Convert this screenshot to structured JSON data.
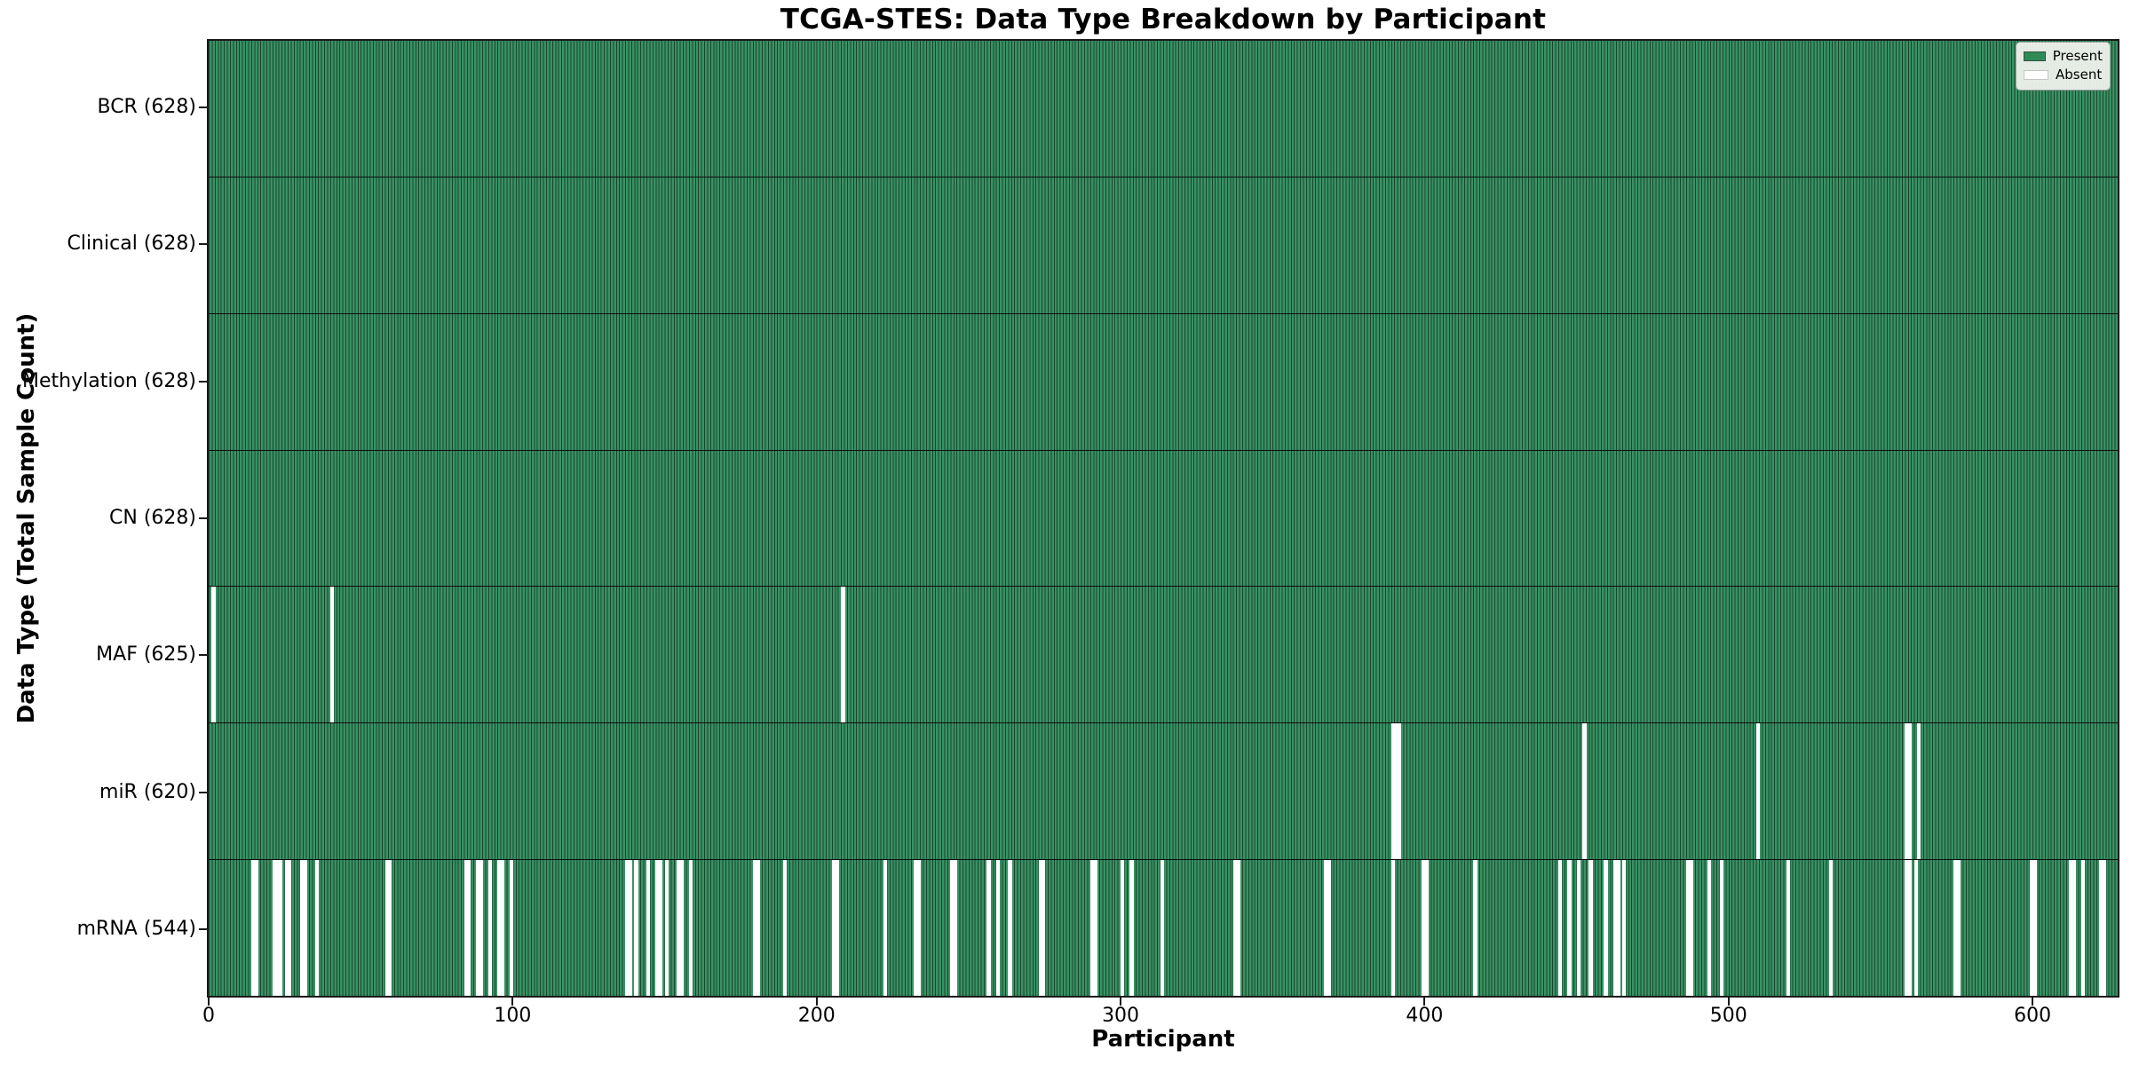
{
  "figure": {
    "title": "TCGA-STES: Data Type Breakdown by Participant",
    "xlabel": "Participant",
    "ylabel": "Data Type (Total Sample Count)"
  },
  "legend": {
    "present_label": "Present",
    "absent_label": "Absent"
  },
  "colors": {
    "present_fill": "#3a9164",
    "bar_edge": "#17472c",
    "absent_fill": "#ffffff",
    "row_divider": "#0d0d0d",
    "plot_border": "#1a1a1a",
    "legend_bg": "#eef2ec",
    "legend_border": "#9aa19a"
  },
  "chart_data": {
    "type": "heatmap",
    "title": "TCGA-STES: Data Type Breakdown by Participant",
    "xlabel": "Participant",
    "ylabel": "Data Type (Total Sample Count)",
    "n_participants": 628,
    "x_ticks": [
      0,
      100,
      200,
      300,
      400,
      500,
      600
    ],
    "xlim": [
      0,
      628
    ],
    "grid": false,
    "legend_position": "upper right",
    "legend": [
      {
        "label": "Present",
        "color": "#2e8b57"
      },
      {
        "label": "Absent",
        "color": "#ffffff"
      }
    ],
    "rows": [
      {
        "label": "BCR (628)",
        "data_type": "BCR",
        "present_count": 628,
        "absent_participants": []
      },
      {
        "label": "Clinical (628)",
        "data_type": "Clinical",
        "present_count": 628,
        "absent_participants": []
      },
      {
        "label": "Methylation (628)",
        "data_type": "Methylation",
        "present_count": 628,
        "absent_participants": []
      },
      {
        "label": "CN (628)",
        "data_type": "CN",
        "present_count": 628,
        "absent_participants": []
      },
      {
        "label": "MAF (625)",
        "data_type": "MAF",
        "present_count": 625,
        "absent_participants": [
          1,
          40,
          208
        ]
      },
      {
        "label": "miR (620)",
        "data_type": "miR",
        "present_count": 620,
        "absent_participants": [
          389,
          390,
          391,
          452,
          509,
          558,
          559,
          562
        ]
      },
      {
        "label": "mRNA (544)",
        "data_type": "mRNA",
        "present_count": 544,
        "absent_participants": [
          14,
          15,
          21,
          22,
          23,
          25,
          26,
          30,
          31,
          35,
          58,
          59,
          84,
          85,
          88,
          89,
          92,
          95,
          96,
          99,
          137,
          138,
          140,
          144,
          147,
          148,
          150,
          154,
          155,
          158,
          179,
          180,
          189,
          205,
          206,
          222,
          232,
          233,
          244,
          245,
          256,
          259,
          263,
          273,
          274,
          290,
          291,
          300,
          303,
          313,
          337,
          338,
          367,
          368,
          389,
          399,
          400,
          416,
          444,
          447,
          450,
          454,
          459,
          462,
          463,
          465,
          486,
          487,
          493,
          497,
          519,
          533,
          558,
          559,
          561,
          574,
          575,
          599,
          600,
          612,
          613,
          616,
          622,
          623
        ]
      }
    ]
  }
}
